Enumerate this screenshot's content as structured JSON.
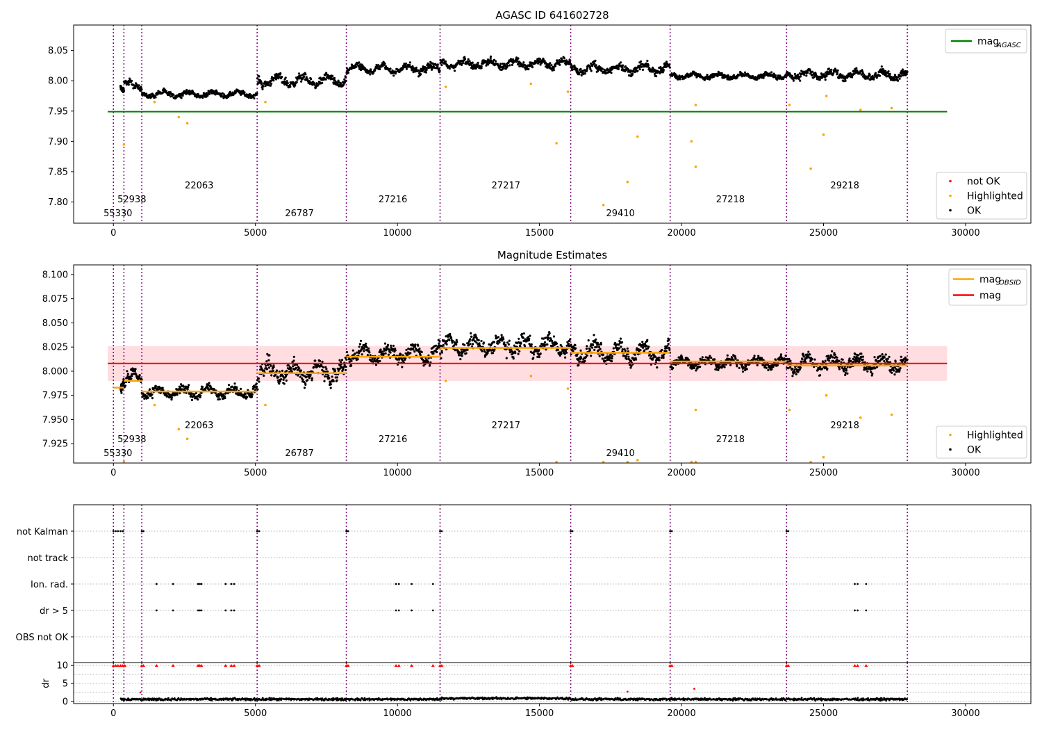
{
  "figure": {
    "obsid_ticks": [
      0,
      370,
      1000,
      5060,
      8200,
      11500,
      16100,
      19600,
      23700,
      27950
    ],
    "obsid_labels": [
      {
        "text": "55330",
        "x": 160,
        "row": 3
      },
      {
        "text": "52938",
        "x": 650,
        "row": 2
      },
      {
        "text": "22063",
        "x": 3020,
        "row": 1
      },
      {
        "text": "26787",
        "x": 6550,
        "row": 3
      },
      {
        "text": "27216",
        "x": 9840,
        "row": 2
      },
      {
        "text": "27217",
        "x": 13820,
        "row": 1
      },
      {
        "text": "29410",
        "x": 17850,
        "row": 3
      },
      {
        "text": "27218",
        "x": 21720,
        "row": 2
      },
      {
        "text": "29218",
        "x": 25750,
        "row": 1
      }
    ],
    "colors": {
      "ok": "#000000",
      "highlighted": "#ffa500",
      "not_ok": "#ff0000",
      "agasc": "#008000",
      "mag": "#ff0000",
      "mag_obsid": "#ffa500",
      "obsid_line": "#800080",
      "band": "#ffdde1"
    }
  },
  "chart_data": [
    {
      "type": "scatter",
      "title": "AGASC ID 641602728",
      "xlim": [
        -1400,
        32300
      ],
      "ylim": [
        7.765,
        8.092
      ],
      "xticks": [
        0,
        5000,
        10000,
        15000,
        20000,
        25000,
        30000
      ],
      "yticks": [
        7.8,
        7.85,
        7.9,
        7.95,
        8.0,
        8.05
      ],
      "ytick_labels": [
        "7.80",
        "7.85",
        "7.90",
        "7.95",
        "8.00",
        "8.05"
      ],
      "hlines": [
        {
          "name": "mag_AGASC",
          "y": 7.949,
          "x": [
            -200,
            29350
          ],
          "color": "#008000"
        }
      ],
      "segments": [
        {
          "x": [
            250,
            370
          ],
          "base": 7.99,
          "amp": 0.009
        },
        {
          "x": [
            370,
            1000
          ],
          "base": 7.993,
          "amp": 0.011
        },
        {
          "x": [
            1000,
            5060
          ],
          "base": 7.978,
          "amp": 0.008
        },
        {
          "x": [
            5060,
            8200
          ],
          "base": 8.0,
          "amp": 0.014
        },
        {
          "x": [
            8200,
            11500
          ],
          "base": 8.02,
          "amp": 0.012
        },
        {
          "x": [
            11500,
            16100
          ],
          "base": 8.028,
          "amp": 0.012
        },
        {
          "x": [
            16100,
            19600
          ],
          "base": 8.02,
          "amp": 0.013
        },
        {
          "x": [
            19600,
            23700
          ],
          "base": 8.008,
          "amp": 0.008
        },
        {
          "x": [
            23700,
            27950
          ],
          "base": 8.01,
          "amp": 0.012
        }
      ],
      "outliers": [
        [
          370,
          7.895
        ],
        [
          1450,
          7.965
        ],
        [
          2300,
          7.94
        ],
        [
          2600,
          7.93
        ],
        [
          5350,
          7.965
        ],
        [
          11700,
          7.99
        ],
        [
          15600,
          7.897
        ],
        [
          17250,
          7.795
        ],
        [
          18100,
          7.833
        ],
        [
          18450,
          7.908
        ],
        [
          20350,
          7.9
        ],
        [
          20500,
          7.858
        ],
        [
          20500,
          7.96
        ],
        [
          24550,
          7.855
        ],
        [
          25000,
          7.911
        ],
        [
          26300,
          7.952
        ],
        [
          16000,
          7.982
        ],
        [
          14700,
          7.995
        ],
        [
          25100,
          7.975
        ],
        [
          23800,
          7.96
        ],
        [
          27400,
          7.955
        ]
      ],
      "legend": [
        {
          "label": "mag",
          "sub": "AGASC",
          "color": "#008000",
          "kind": "line"
        },
        {
          "label": "not OK",
          "color": "#ff0000",
          "kind": "dot"
        },
        {
          "label": "Highlighted",
          "color": "#ffa500",
          "kind": "dot"
        },
        {
          "label": "OK",
          "color": "#000000",
          "kind": "dot"
        }
      ]
    },
    {
      "type": "scatter",
      "title": "Magnitude Estimates",
      "xlim": [
        -1400,
        32300
      ],
      "ylim": [
        7.905,
        8.11
      ],
      "xticks": [
        0,
        5000,
        10000,
        15000,
        20000,
        25000,
        30000
      ],
      "yticks": [
        7.925,
        7.95,
        7.975,
        8.0,
        8.025,
        8.05,
        8.075,
        8.1
      ],
      "ytick_labels": [
        "7.925",
        "7.950",
        "7.975",
        "8.000",
        "8.025",
        "8.050",
        "8.075",
        "8.100"
      ],
      "band": {
        "y": [
          7.99,
          8.026
        ],
        "x": [
          -200,
          29350
        ],
        "color": "#ffdde1"
      },
      "hlines": [
        {
          "name": "mag",
          "y": 8.008,
          "x": [
            -200,
            29350
          ],
          "color": "#ff0000"
        }
      ],
      "obsid_mag": [
        {
          "x": [
            0,
            370
          ],
          "y": 7.983
        },
        {
          "x": [
            370,
            1000
          ],
          "y": 7.99
        },
        {
          "x": [
            1000,
            5060
          ],
          "y": 7.979
        },
        {
          "x": [
            5060,
            8200
          ],
          "y": 7.998
        },
        {
          "x": [
            8200,
            11500
          ],
          "y": 8.015
        },
        {
          "x": [
            11500,
            16100
          ],
          "y": 8.024
        },
        {
          "x": [
            16100,
            19600
          ],
          "y": 8.019
        },
        {
          "x": [
            19600,
            23700
          ],
          "y": 8.01
        },
        {
          "x": [
            23700,
            27950
          ],
          "y": 8.006
        }
      ],
      "legend": [
        {
          "label": "mag",
          "sub": "OBSID",
          "color": "#ffa500",
          "kind": "line"
        },
        {
          "label": "mag",
          "color": "#ff0000",
          "kind": "line"
        },
        {
          "label": "Highlighted",
          "color": "#ffa500",
          "kind": "dot"
        },
        {
          "label": "OK",
          "color": "#000000",
          "kind": "dot"
        }
      ]
    },
    {
      "type": "scatter",
      "xlim": [
        -1400,
        32300
      ],
      "categories": [
        "not Kalman",
        "not track",
        "Ion. rad.",
        "dr > 5",
        "OBS not OK"
      ],
      "xticks": [
        0,
        5000,
        10000,
        15000,
        20000,
        25000,
        30000
      ],
      "flag_points": {
        "not Kalman": [
          0,
          80,
          160,
          250,
          330,
          1000,
          1060,
          5060,
          5130,
          8200,
          8260,
          11500,
          11560,
          16100,
          16160,
          19600,
          19660,
          23700,
          23760
        ],
        "not track": [],
        "Ion. rad.": [
          1520,
          2100,
          2980,
          3040,
          3100,
          3950,
          4150,
          4250,
          9950,
          10050,
          10500,
          11250,
          26100,
          26200,
          26500
        ],
        "dr > 5": [
          1520,
          2100,
          2980,
          3040,
          3100,
          3950,
          4150,
          4250,
          9950,
          10050,
          10500,
          11250,
          26100,
          26200,
          26500
        ],
        "OBS not OK": []
      }
    },
    {
      "type": "scatter",
      "ylabel": "dr",
      "xlim": [
        -1400,
        32300
      ],
      "ylim": [
        -0.6,
        10.8
      ],
      "yticks": [
        0,
        5,
        10
      ],
      "ytick_labels": [
        "0",
        "5",
        "10"
      ],
      "xticks": [
        0,
        5000,
        10000,
        15000,
        20000,
        25000,
        30000
      ],
      "dr_base": 0.6,
      "dr_outliers": [
        [
          950,
          2.5
        ],
        [
          18100,
          2.7
        ],
        [
          20450,
          3.5
        ]
      ],
      "dr_clipped": [
        0,
        80,
        160,
        250,
        330,
        400,
        1000,
        1060,
        1520,
        2100,
        2980,
        3040,
        3100,
        3950,
        4150,
        4250,
        5060,
        5130,
        8200,
        8260,
        9950,
        10050,
        10500,
        11250,
        11500,
        11560,
        16100,
        16160,
        19600,
        19660,
        23700,
        23760,
        26100,
        26200,
        26500
      ]
    }
  ]
}
